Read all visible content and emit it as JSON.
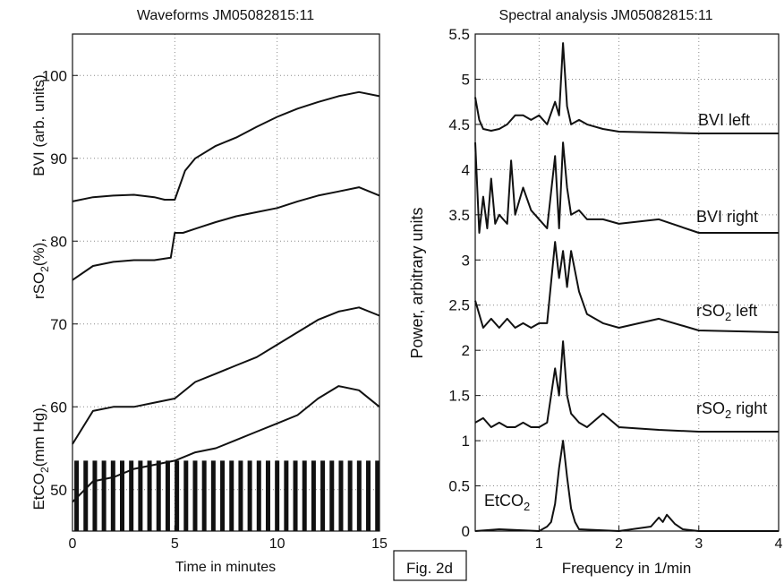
{
  "figure_label": "Fig. 2d",
  "chart_data": [
    {
      "type": "line",
      "title": "Waveforms JM05082815:11",
      "xlabel": "Time in minutes",
      "ylabel_parts": [
        "BVI (arb. units)",
        "rSO2(%),",
        "EtCO2(mm Hg),"
      ],
      "xlim": [
        0,
        15
      ],
      "ylim": [
        45,
        105
      ],
      "xticks": [
        "0",
        "5",
        "10",
        "15"
      ],
      "yticks": [
        "50",
        "60",
        "70",
        "80",
        "90",
        "100"
      ],
      "grid": true,
      "series": [
        {
          "x": [
            0,
            1,
            2,
            3,
            4,
            4.5,
            5,
            5.5,
            6,
            7,
            8,
            9,
            10,
            11,
            12,
            13,
            14,
            15
          ],
          "values": [
            84.8,
            85.3,
            85.5,
            85.6,
            85.3,
            85.0,
            85.0,
            88.5,
            90.0,
            91.5,
            92.5,
            93.8,
            95.0,
            96.0,
            96.8,
            97.5,
            98.0,
            97.5
          ]
        },
        {
          "x": [
            0,
            1,
            2,
            3,
            4,
            4.8,
            5.0,
            5.4,
            6,
            7,
            8,
            9,
            10,
            11,
            12,
            13,
            14,
            15
          ],
          "values": [
            75.3,
            77.0,
            77.5,
            77.7,
            77.7,
            78.0,
            81.0,
            81.0,
            81.5,
            82.3,
            83.0,
            83.5,
            84.0,
            84.8,
            85.5,
            86.0,
            86.5,
            85.5
          ]
        },
        {
          "x": [
            0,
            1,
            2,
            3,
            4,
            5,
            6,
            7,
            8,
            9,
            10,
            11,
            12,
            13,
            14,
            15
          ],
          "values": [
            55.5,
            59.5,
            60.0,
            60.0,
            60.5,
            61.0,
            63.0,
            64.0,
            65.0,
            66.0,
            67.5,
            69.0,
            70.5,
            71.5,
            72.0,
            71.0
          ]
        },
        {
          "x": [
            0,
            1,
            2,
            3,
            4,
            5,
            6,
            7,
            8,
            9,
            10,
            11,
            12,
            13,
            14,
            15
          ],
          "values": [
            48.5,
            51.0,
            51.5,
            52.5,
            53.0,
            53.5,
            54.5,
            55.0,
            56.0,
            57.0,
            58.0,
            59.0,
            61.0,
            62.5,
            62.0,
            60.0
          ]
        }
      ],
      "spikes": {
        "x_start": 0.2,
        "x_end": 14.9,
        "count": 34,
        "base": 45,
        "peak": 53.5
      }
    },
    {
      "type": "line",
      "title": "Spectral analysis JM05082815:11",
      "xlabel": "Frequency in 1/min",
      "ylabel": "Power, arbitrary units",
      "xlim": [
        0.2,
        4
      ],
      "ylim": [
        0,
        5.5
      ],
      "xticks": [
        "1",
        "2",
        "3",
        "4"
      ],
      "yticks": [
        "0",
        "0.5",
        "1",
        "1.5",
        "2",
        "2.5",
        "3",
        "3.5",
        "4",
        "4.5",
        "5",
        "5.5"
      ],
      "grid": true,
      "series_labels": [
        {
          "prefix": "BVI left",
          "sub": "",
          "suffix": ""
        },
        {
          "prefix": "BVI right",
          "sub": "",
          "suffix": ""
        },
        {
          "prefix": "rSO",
          "sub": "2",
          "suffix": " left"
        },
        {
          "prefix": "rSO",
          "sub": "2",
          "suffix": " right"
        },
        {
          "prefix": "EtCO",
          "sub": "2",
          "suffix": ""
        }
      ],
      "series": [
        {
          "x": [
            0.2,
            0.25,
            0.3,
            0.4,
            0.5,
            0.6,
            0.7,
            0.8,
            0.9,
            1.0,
            1.1,
            1.2,
            1.25,
            1.3,
            1.35,
            1.4,
            1.5,
            1.6,
            1.8,
            2.0,
            2.5,
            3.0,
            4.0
          ],
          "values": [
            4.8,
            4.55,
            4.45,
            4.43,
            4.45,
            4.5,
            4.6,
            4.6,
            4.55,
            4.6,
            4.5,
            4.75,
            4.6,
            5.4,
            4.7,
            4.5,
            4.55,
            4.5,
            4.45,
            4.42,
            4.41,
            4.4,
            4.4
          ]
        },
        {
          "x": [
            0.2,
            0.25,
            0.3,
            0.35,
            0.4,
            0.45,
            0.5,
            0.6,
            0.65,
            0.7,
            0.8,
            0.9,
            1.0,
            1.1,
            1.2,
            1.25,
            1.3,
            1.35,
            1.4,
            1.5,
            1.6,
            1.8,
            2.0,
            2.5,
            3.0,
            4.0
          ],
          "values": [
            4.3,
            3.3,
            3.7,
            3.35,
            3.9,
            3.4,
            3.5,
            3.4,
            4.1,
            3.5,
            3.8,
            3.55,
            3.45,
            3.35,
            4.15,
            3.35,
            4.3,
            3.8,
            3.5,
            3.55,
            3.45,
            3.45,
            3.4,
            3.45,
            3.3,
            3.3
          ]
        },
        {
          "x": [
            0.2,
            0.3,
            0.4,
            0.5,
            0.6,
            0.7,
            0.8,
            0.9,
            1.0,
            1.1,
            1.2,
            1.25,
            1.3,
            1.35,
            1.4,
            1.5,
            1.6,
            1.8,
            2.0,
            2.5,
            3.0,
            4.0
          ],
          "values": [
            2.55,
            2.25,
            2.35,
            2.25,
            2.35,
            2.25,
            2.3,
            2.25,
            2.3,
            2.3,
            3.2,
            2.8,
            3.1,
            2.7,
            3.1,
            2.65,
            2.4,
            2.3,
            2.25,
            2.35,
            2.22,
            2.2
          ]
        },
        {
          "x": [
            0.2,
            0.3,
            0.4,
            0.5,
            0.6,
            0.7,
            0.8,
            0.9,
            1.0,
            1.1,
            1.2,
            1.25,
            1.3,
            1.35,
            1.4,
            1.5,
            1.6,
            1.8,
            2.0,
            2.5,
            3.0,
            4.0
          ],
          "values": [
            1.2,
            1.25,
            1.15,
            1.2,
            1.15,
            1.15,
            1.2,
            1.15,
            1.15,
            1.2,
            1.8,
            1.5,
            2.1,
            1.5,
            1.3,
            1.2,
            1.15,
            1.3,
            1.15,
            1.12,
            1.1,
            1.1
          ]
        },
        {
          "x": [
            0.2,
            0.5,
            1.0,
            1.1,
            1.15,
            1.2,
            1.25,
            1.3,
            1.35,
            1.4,
            1.45,
            1.5,
            2.0,
            2.4,
            2.5,
            2.55,
            2.6,
            2.7,
            2.8,
            3.0,
            4.0
          ],
          "values": [
            0.0,
            0.02,
            0.0,
            0.05,
            0.1,
            0.3,
            0.7,
            1.0,
            0.6,
            0.25,
            0.1,
            0.02,
            0.0,
            0.05,
            0.15,
            0.1,
            0.18,
            0.08,
            0.02,
            0.0,
            0.0
          ]
        }
      ]
    }
  ]
}
